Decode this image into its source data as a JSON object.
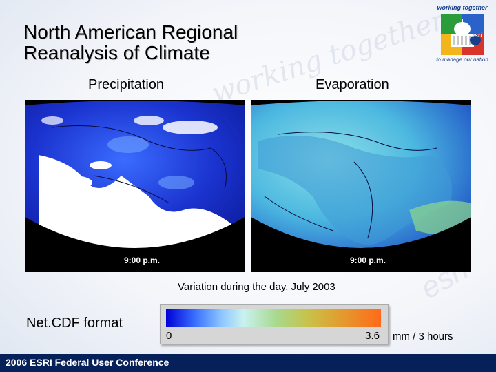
{
  "slide": {
    "title_line1": "North American Regional",
    "title_line2": "Reanalysis of Climate",
    "panel_left_label": "Precipitation",
    "panel_right_label": "Evaporation",
    "map_time_left": "9:00 p.m.",
    "map_time_right": "9:00 p.m.",
    "caption": "Variation during the day, July 2003",
    "format_label": "Net.CDF format",
    "colorbar": {
      "min": "0",
      "max": "3.6",
      "units": "mm / 3 hours"
    },
    "footer": "2006 ESRI Federal User Conference",
    "logo_top": "working together",
    "logo_bottom": "to manage our nation",
    "logo_text": "esri",
    "watermark_left": "working together",
    "watermark_right": "esri"
  },
  "colors": {
    "footer_bg": "#06205a",
    "precip_ocean": "#1e3ad0",
    "evap_land": "#4fc6e4",
    "map_bg": "#000000"
  }
}
